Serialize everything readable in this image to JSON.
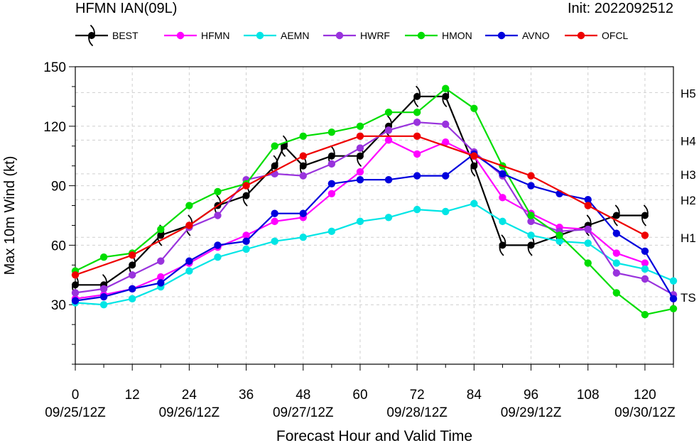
{
  "header": {
    "title": "HFMN IAN(09L)",
    "init": "Init: 2022092512"
  },
  "chart_data": {
    "type": "line",
    "xlabel": "Forecast Hour and Valid Time",
    "ylabel": "Max 10m Wind (kt)",
    "xlim": [
      0,
      126
    ],
    "ylim": [
      0,
      150
    ],
    "x_ticks": [
      0,
      12,
      24,
      36,
      48,
      60,
      72,
      84,
      96,
      108,
      120
    ],
    "date_ticks": [
      {
        "x": 0,
        "label": "09/25/12Z"
      },
      {
        "x": 24,
        "label": "09/26/12Z"
      },
      {
        "x": 48,
        "label": "09/27/12Z"
      },
      {
        "x": 72,
        "label": "09/28/12Z"
      },
      {
        "x": 96,
        "label": "09/29/12Z"
      },
      {
        "x": 120,
        "label": "09/30/12Z"
      }
    ],
    "y_ticks": [
      30,
      60,
      90,
      120,
      150
    ],
    "categories": [
      {
        "label": "TS",
        "y": 34
      },
      {
        "label": "H1",
        "y": 64
      },
      {
        "label": "H2",
        "y": 83
      },
      {
        "label": "H3",
        "y": 96
      },
      {
        "label": "H4",
        "y": 113
      },
      {
        "label": "H5",
        "y": 137
      }
    ],
    "grid": true,
    "legend": "top",
    "series": [
      {
        "name": "BEST",
        "color": "#000000",
        "marker": "hurricane",
        "x": [
          0,
          6,
          12,
          18,
          24,
          30,
          36,
          42,
          44,
          48,
          54,
          60,
          66,
          72,
          78,
          84,
          90,
          96,
          102,
          108,
          114,
          120
        ],
        "y": [
          40,
          40,
          50,
          65,
          70,
          80,
          85,
          100,
          110,
          100,
          105,
          105,
          120,
          135,
          135,
          100,
          60,
          60,
          65,
          70,
          75,
          75
        ]
      },
      {
        "name": "HFMN",
        "color": "#ff00ff",
        "marker": "dot",
        "x": [
          0,
          6,
          12,
          18,
          24,
          30,
          36,
          42,
          48,
          54,
          60,
          66,
          72,
          78,
          84,
          90,
          96,
          102,
          108,
          114,
          120
        ],
        "y": [
          33,
          35,
          38,
          44,
          51,
          59,
          65,
          72,
          74,
          86,
          97,
          113,
          106,
          112,
          105,
          84,
          76,
          69,
          68,
          56,
          51
        ]
      },
      {
        "name": "AEMN",
        "color": "#00e5e5",
        "marker": "dot",
        "x": [
          0,
          6,
          12,
          18,
          24,
          30,
          36,
          42,
          48,
          54,
          60,
          66,
          72,
          78,
          84,
          90,
          96,
          102,
          108,
          114,
          120,
          126
        ],
        "y": [
          31,
          30,
          33,
          39,
          47,
          54,
          58,
          62,
          64,
          67,
          72,
          74,
          78,
          77,
          81,
          72,
          65,
          62,
          61,
          51,
          48,
          42
        ]
      },
      {
        "name": "HWRF",
        "color": "#9933dd",
        "marker": "dot",
        "x": [
          0,
          6,
          12,
          18,
          24,
          30,
          36,
          42,
          48,
          54,
          60,
          66,
          72,
          78,
          84,
          90,
          96,
          102,
          108,
          114,
          120,
          126
        ],
        "y": [
          36,
          38,
          45,
          52,
          69,
          75,
          93,
          96,
          95,
          101,
          109,
          118,
          122,
          121,
          107,
          95,
          72,
          67,
          68,
          46,
          43,
          35
        ]
      },
      {
        "name": "HMON",
        "color": "#00dd00",
        "marker": "dot",
        "x": [
          0,
          6,
          12,
          18,
          24,
          30,
          36,
          42,
          48,
          54,
          60,
          66,
          72,
          78,
          84,
          90,
          96,
          102,
          108,
          114,
          120,
          126
        ],
        "y": [
          47,
          54,
          56,
          68,
          80,
          87,
          91,
          110,
          115,
          117,
          120,
          127,
          127,
          139,
          129,
          100,
          75,
          65,
          51,
          36,
          25,
          28
        ]
      },
      {
        "name": "AVNO",
        "color": "#0000dd",
        "marker": "dot",
        "x": [
          0,
          6,
          12,
          18,
          24,
          30,
          36,
          42,
          48,
          54,
          60,
          66,
          72,
          78,
          84,
          90,
          96,
          102,
          108,
          114,
          120,
          126
        ],
        "y": [
          32,
          34,
          38,
          41,
          52,
          60,
          62,
          76,
          76,
          91,
          93,
          93,
          95,
          95,
          106,
          96,
          90,
          86,
          83,
          66,
          57,
          33
        ]
      },
      {
        "name": "OFCL",
        "color": "#ee0000",
        "marker": "dot",
        "x": [
          0,
          12,
          24,
          36,
          48,
          60,
          72,
          84,
          96,
          108,
          120
        ],
        "y": [
          45,
          55,
          70,
          90,
          105,
          115,
          115,
          105,
          95,
          80,
          65
        ]
      }
    ]
  }
}
